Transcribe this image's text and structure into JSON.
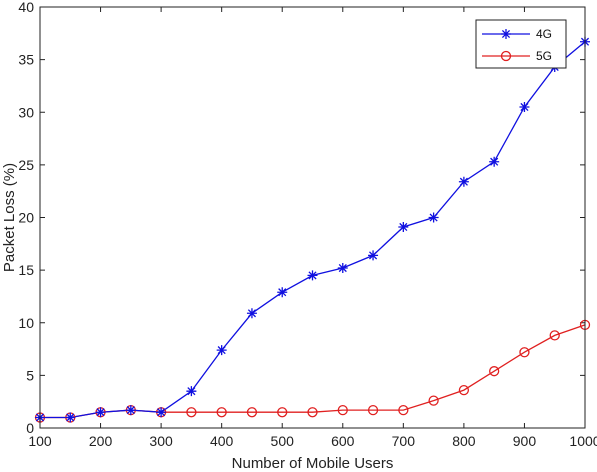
{
  "chart_data": {
    "type": "line",
    "title": "",
    "xlabel": "Number of Mobile Users",
    "ylabel": "Packet Loss (%)",
    "xlim": [
      100,
      1000
    ],
    "ylim": [
      0,
      40
    ],
    "xticks": [
      100,
      200,
      300,
      400,
      500,
      600,
      700,
      800,
      900,
      1000
    ],
    "yticks": [
      0,
      5,
      10,
      15,
      20,
      25,
      30,
      35,
      40
    ],
    "grid": false,
    "legend_position": "top-right",
    "x": [
      100,
      150,
      200,
      250,
      300,
      350,
      400,
      450,
      500,
      550,
      600,
      650,
      700,
      750,
      800,
      850,
      900,
      950,
      1000
    ],
    "series": [
      {
        "name": "4G",
        "color": "#1010e0",
        "marker": "asterisk",
        "values": [
          1.0,
          1.0,
          1.5,
          1.7,
          1.5,
          3.5,
          7.4,
          10.9,
          12.9,
          14.5,
          15.2,
          16.4,
          19.1,
          20.0,
          23.4,
          25.3,
          30.5,
          34.3,
          36.7
        ]
      },
      {
        "name": "5G",
        "color": "#e02020",
        "marker": "circle",
        "values": [
          1.0,
          1.0,
          1.5,
          1.7,
          1.5,
          1.5,
          1.5,
          1.5,
          1.5,
          1.5,
          1.7,
          1.7,
          1.7,
          2.6,
          3.6,
          5.4,
          7.2,
          8.8,
          9.8
        ]
      }
    ]
  }
}
